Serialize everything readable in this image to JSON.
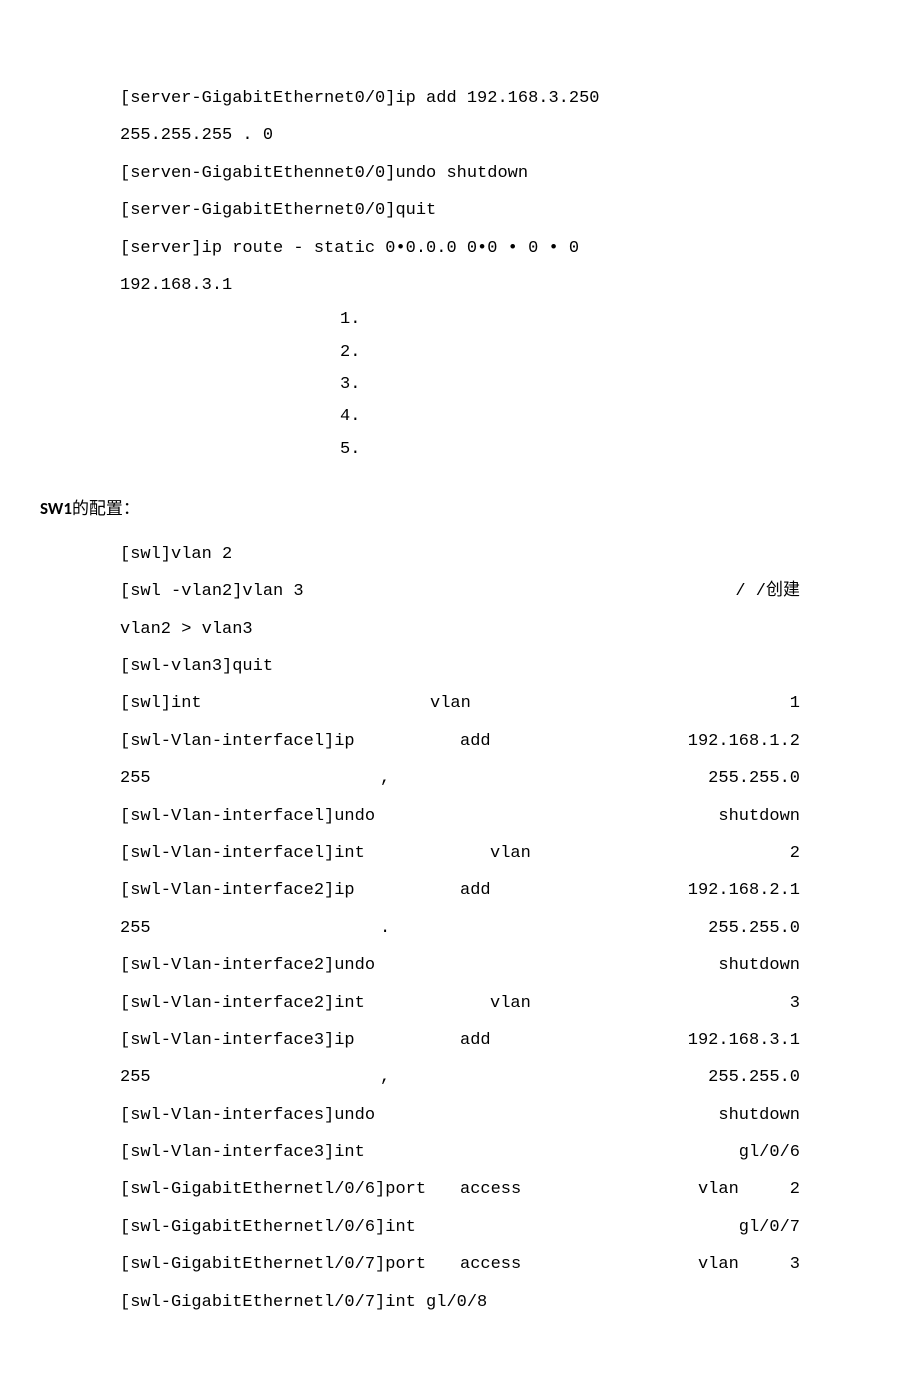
{
  "block1": {
    "lines": [
      "[server-GigabitEthernet0/0]ip add 192.168.3.250",
      "255.255.255 . 0",
      "[serven-GigabitEthennet0/0]undo shutdown",
      "[server-GigabitEthernet0/0]quit",
      "[server]ip route - static 0•0.0.0 0•0 • 0 • 0",
      "192.168.3.1"
    ],
    "numlist": [
      "1.",
      "2.",
      "3.",
      "4.",
      "5."
    ]
  },
  "heading": {
    "bold": "SW1",
    "rest": "的配置："
  },
  "block2": {
    "rows": [
      {
        "cols": [
          "[swl]vlan 2",
          "",
          ""
        ]
      },
      {
        "cols": [
          "[swl -vlan2]vlan 3",
          "",
          "/ /创建"
        ]
      },
      {
        "cols": [
          "vlan2 > vlan3",
          "",
          ""
        ]
      },
      {
        "cols": [
          "[swl-vlan3]quit",
          "",
          ""
        ]
      },
      {
        "cols": [
          "[swl]int",
          "vlan",
          "1"
        ]
      },
      {
        "cols": [
          "[swl-Vlan-interfacel]ip",
          "add",
          "192.168.1.2"
        ]
      },
      {
        "cols": [
          "255",
          ",",
          "255.255.0"
        ]
      },
      {
        "cols": [
          "[swl-Vlan-interfacel]undo",
          "",
          "shutdown"
        ]
      },
      {
        "cols": [
          "[swl-Vlan-interfacel]int",
          "vlan",
          "2"
        ]
      },
      {
        "cols": [
          "[swl-Vlan-interface2]ip",
          "add",
          "192.168.2.1"
        ]
      },
      {
        "cols": [
          "255",
          ".",
          "255.255.0"
        ]
      },
      {
        "cols": [
          "[swl-Vlan-interface2]undo",
          "",
          "shutdown"
        ]
      },
      {
        "cols": [
          "[swl-Vlan-interface2]int",
          "vlan",
          "3"
        ]
      },
      {
        "cols": [
          "[swl-Vlan-interface3]ip",
          "add",
          "192.168.3.1"
        ]
      },
      {
        "cols": [
          "255",
          ",",
          "255.255.0"
        ]
      },
      {
        "cols": [
          "[swl-Vlan-interfaces]undo",
          "",
          "shutdown"
        ]
      },
      {
        "cols": [
          "[swl-Vlan-interface3]int",
          "",
          "gl/0/6"
        ]
      },
      {
        "cols": [
          "[swl-GigabitEthernetl/0/6]port",
          "access",
          "vlan     2"
        ]
      },
      {
        "cols": [
          "[swl-GigabitEthernetl/0/6]int",
          "",
          "gl/0/7"
        ]
      },
      {
        "cols": [
          "[swl-GigabitEthernetl/0/7]port",
          "access",
          "vlan     3"
        ]
      },
      {
        "cols": [
          "[swl-GigabitEthernetl/0/7]int gl/0/8",
          "",
          ""
        ]
      }
    ],
    "midPositions": [
      null,
      null,
      null,
      null,
      310,
      340,
      260,
      null,
      370,
      340,
      260,
      null,
      370,
      340,
      260,
      null,
      null,
      340,
      null,
      340,
      null
    ],
    "rightComment": "/ /创建"
  },
  "layout": {
    "rowWidth": 680
  }
}
